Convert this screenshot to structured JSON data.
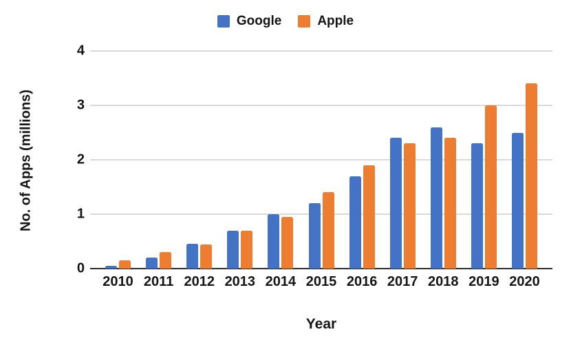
{
  "chart_data": {
    "type": "bar",
    "categories": [
      "2010",
      "2011",
      "2012",
      "2013",
      "2014",
      "2015",
      "2016",
      "2017",
      "2018",
      "2019",
      "2020"
    ],
    "series": [
      {
        "name": "Google",
        "color": "#4472C4",
        "values": [
          0.05,
          0.2,
          0.45,
          0.7,
          1.0,
          1.2,
          1.7,
          2.4,
          2.6,
          2.3,
          2.5
        ]
      },
      {
        "name": "Apple",
        "color": "#ED7D31",
        "values": [
          0.15,
          0.3,
          0.44,
          0.7,
          0.95,
          1.4,
          1.9,
          2.3,
          2.4,
          3.0,
          3.4
        ]
      }
    ],
    "title": "",
    "xlabel": "Year",
    "ylabel": "No. of Apps (millions)",
    "ylim": [
      0,
      4
    ],
    "yticks": [
      0,
      1,
      2,
      3,
      4
    ],
    "grid": "horizontal",
    "legend_position": "top-center",
    "colors": {
      "gridline": "#d9d9d9",
      "axis_line": "#2b2b2b",
      "text": "#151515"
    }
  }
}
